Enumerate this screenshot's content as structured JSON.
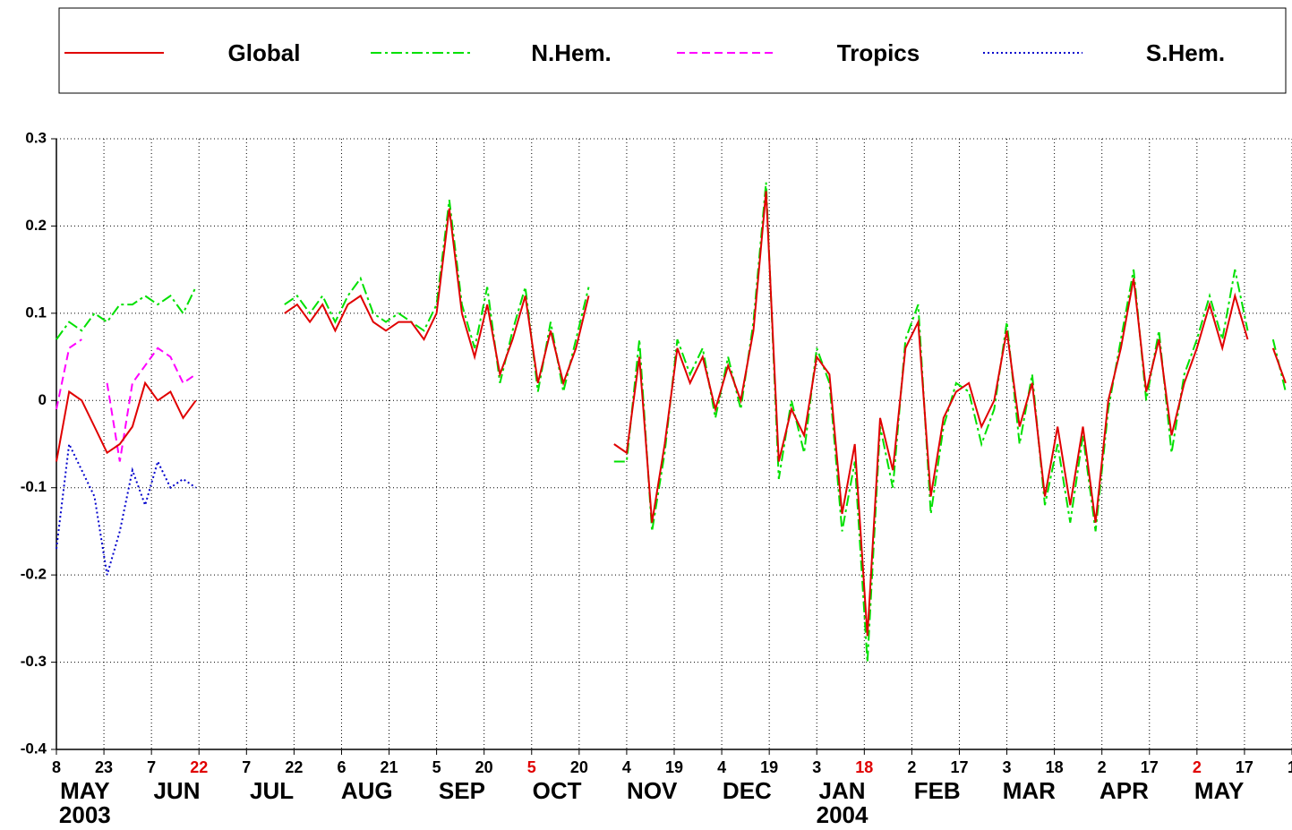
{
  "chart_data": {
    "type": "line",
    "x": [
      "2003-05-08",
      "2003-05-12",
      "2003-05-16",
      "2003-05-20",
      "2003-05-24",
      "2003-05-28",
      "2003-06-01",
      "2003-06-05",
      "2003-06-09",
      "2003-06-13",
      "2003-06-17",
      "2003-06-21",
      "2003-06-25",
      "2003-06-29",
      "2003-07-03",
      "2003-07-07",
      "2003-07-11",
      "2003-07-15",
      "2003-07-19",
      "2003-07-23",
      "2003-07-27",
      "2003-07-31",
      "2003-08-04",
      "2003-08-08",
      "2003-08-12",
      "2003-08-16",
      "2003-08-20",
      "2003-08-24",
      "2003-08-28",
      "2003-09-01",
      "2003-09-05",
      "2003-09-09",
      "2003-09-13",
      "2003-09-17",
      "2003-09-21",
      "2003-09-25",
      "2003-09-29",
      "2003-10-03",
      "2003-10-07",
      "2003-10-11",
      "2003-10-15",
      "2003-10-19",
      "2003-10-23",
      "2003-10-27",
      "2003-10-31",
      "2003-11-04",
      "2003-11-08",
      "2003-11-12",
      "2003-11-16",
      "2003-11-20",
      "2003-11-24",
      "2003-11-28",
      "2003-12-02",
      "2003-12-06",
      "2003-12-10",
      "2003-12-14",
      "2003-12-18",
      "2003-12-22",
      "2003-12-26",
      "2003-12-30",
      "2004-01-03",
      "2004-01-07",
      "2004-01-11",
      "2004-01-15",
      "2004-01-19",
      "2004-01-23",
      "2004-01-27",
      "2004-01-31",
      "2004-02-04",
      "2004-02-08",
      "2004-02-12",
      "2004-02-16",
      "2004-02-20",
      "2004-02-24",
      "2004-02-28",
      "2004-03-03",
      "2004-03-07",
      "2004-03-11",
      "2004-03-15",
      "2004-03-19",
      "2004-03-23",
      "2004-03-27",
      "2004-03-31",
      "2004-04-04",
      "2004-04-08",
      "2004-04-12",
      "2004-04-16",
      "2004-04-20",
      "2004-04-24",
      "2004-04-28",
      "2004-05-02",
      "2004-05-06",
      "2004-05-10",
      "2004-05-14",
      "2004-05-18",
      "2004-05-22",
      "2004-05-26",
      "2004-05-30"
    ],
    "series": [
      {
        "name": "Global",
        "color": "#e00000",
        "dash": "solid",
        "values": [
          -0.07,
          0.01,
          0.0,
          -0.03,
          -0.06,
          -0.05,
          -0.03,
          0.02,
          0.0,
          0.01,
          -0.02,
          0.0,
          null,
          null,
          null,
          null,
          null,
          null,
          0.1,
          0.11,
          0.09,
          0.11,
          0.08,
          0.11,
          0.12,
          0.09,
          0.08,
          0.09,
          0.09,
          0.07,
          0.1,
          0.22,
          0.1,
          0.05,
          0.11,
          0.03,
          0.07,
          0.12,
          0.02,
          0.08,
          0.02,
          0.06,
          0.12,
          null,
          -0.05,
          -0.06,
          0.05,
          -0.14,
          -0.05,
          0.06,
          0.02,
          0.05,
          -0.01,
          0.04,
          0.0,
          0.08,
          0.24,
          -0.07,
          -0.01,
          -0.04,
          0.05,
          0.03,
          -0.13,
          -0.05,
          -0.27,
          -0.02,
          -0.08,
          0.06,
          0.09,
          -0.11,
          -0.02,
          0.01,
          0.02,
          -0.03,
          0.0,
          0.08,
          -0.03,
          0.02,
          -0.11,
          -0.03,
          -0.12,
          -0.03,
          -0.14,
          0.0,
          0.06,
          0.14,
          0.01,
          0.07,
          -0.04,
          0.02,
          0.06,
          0.11,
          0.06,
          0.12,
          0.07,
          null,
          0.06,
          0.02
        ]
      },
      {
        "name": "N.Hem.",
        "color": "#00e000",
        "dash": "dashdot",
        "values": [
          0.07,
          0.09,
          0.08,
          0.1,
          0.09,
          0.11,
          0.11,
          0.12,
          0.11,
          0.12,
          0.1,
          0.13,
          null,
          null,
          null,
          null,
          null,
          null,
          0.11,
          0.12,
          0.1,
          0.12,
          0.09,
          0.12,
          0.14,
          0.1,
          0.09,
          0.1,
          0.09,
          0.08,
          0.11,
          0.23,
          0.11,
          0.06,
          0.13,
          0.02,
          0.08,
          0.13,
          0.01,
          0.09,
          0.01,
          0.07,
          0.13,
          null,
          -0.07,
          -0.07,
          0.07,
          -0.15,
          -0.06,
          0.07,
          0.03,
          0.06,
          -0.02,
          0.05,
          -0.01,
          0.09,
          0.25,
          -0.09,
          0.0,
          -0.06,
          0.06,
          0.02,
          -0.15,
          -0.07,
          -0.3,
          -0.03,
          -0.1,
          0.07,
          0.11,
          -0.13,
          -0.03,
          0.02,
          0.01,
          -0.05,
          -0.01,
          0.09,
          -0.05,
          0.03,
          -0.12,
          -0.05,
          -0.14,
          -0.04,
          -0.15,
          -0.01,
          0.07,
          0.15,
          0.0,
          0.08,
          -0.06,
          0.03,
          0.07,
          0.12,
          0.07,
          0.15,
          0.08,
          null,
          0.07,
          0.01
        ]
      },
      {
        "name": "Tropics",
        "color": "#ff00ff",
        "dash": "dashed",
        "values": [
          -0.01,
          0.06,
          0.07,
          null,
          0.02,
          -0.07,
          0.02,
          0.04,
          0.06,
          0.05,
          0.02,
          0.03,
          null,
          null,
          null,
          null,
          null,
          null,
          null,
          null,
          null,
          null,
          null,
          null,
          null,
          null,
          null,
          null,
          null,
          null,
          null,
          null,
          null,
          null,
          null,
          null,
          null,
          null,
          null,
          null,
          null,
          null,
          null,
          null,
          null,
          null,
          null,
          null,
          null,
          null,
          null,
          null,
          null,
          null,
          null,
          null,
          null,
          null,
          null,
          null,
          null,
          null,
          null,
          null,
          null,
          null,
          null,
          null,
          null,
          null,
          null,
          null,
          null,
          null,
          null,
          null,
          null,
          null,
          null,
          null,
          null,
          null,
          null,
          null,
          null,
          null,
          null,
          null,
          null,
          null,
          null,
          null,
          null,
          null,
          null,
          null,
          null,
          null
        ]
      },
      {
        "name": "S.Hem.",
        "color": "#0000cc",
        "dash": "dotted",
        "values": [
          -0.17,
          -0.05,
          -0.08,
          -0.11,
          -0.2,
          -0.15,
          -0.08,
          -0.12,
          -0.07,
          -0.1,
          -0.09,
          -0.1,
          null,
          null,
          null,
          null,
          null,
          null,
          null,
          null,
          null,
          null,
          null,
          null,
          null,
          null,
          null,
          null,
          null,
          null,
          null,
          null,
          null,
          null,
          null,
          null,
          null,
          null,
          null,
          null,
          null,
          null,
          null,
          null,
          null,
          null,
          null,
          null,
          null,
          null,
          null,
          null,
          null,
          null,
          null,
          null,
          null,
          null,
          null,
          null,
          null,
          null,
          null,
          null,
          null,
          null,
          null,
          null,
          null,
          null,
          null,
          null,
          null,
          null,
          null,
          null,
          null,
          null,
          null,
          null,
          null,
          null,
          null,
          null,
          null,
          null,
          null,
          null,
          null,
          null,
          null,
          null,
          null,
          null,
          null,
          null,
          null,
          null
        ]
      }
    ],
    "xlim": [
      "2003-05-08",
      "2004-06-01"
    ],
    "xticks": [
      {
        "value": "2003-05-08",
        "label": "8"
      },
      {
        "value": "2003-05-23",
        "label": "23"
      },
      {
        "value": "2003-06-07",
        "label": "7"
      },
      {
        "value": "2003-06-22",
        "label": "22",
        "color": "#e00000"
      },
      {
        "value": "2003-07-07",
        "label": "7"
      },
      {
        "value": "2003-07-22",
        "label": "22"
      },
      {
        "value": "2003-08-06",
        "label": "6"
      },
      {
        "value": "2003-08-21",
        "label": "21"
      },
      {
        "value": "2003-09-05",
        "label": "5"
      },
      {
        "value": "2003-09-20",
        "label": "20"
      },
      {
        "value": "2003-10-05",
        "label": "5",
        "color": "#e00000"
      },
      {
        "value": "2003-10-20",
        "label": "20"
      },
      {
        "value": "2003-11-04",
        "label": "4"
      },
      {
        "value": "2003-11-19",
        "label": "19"
      },
      {
        "value": "2003-12-04",
        "label": "4"
      },
      {
        "value": "2003-12-19",
        "label": "19"
      },
      {
        "value": "2004-01-03",
        "label": "3"
      },
      {
        "value": "2004-01-18",
        "label": "18",
        "color": "#e00000"
      },
      {
        "value": "2004-02-02",
        "label": "2"
      },
      {
        "value": "2004-02-17",
        "label": "17"
      },
      {
        "value": "2004-03-03",
        "label": "3"
      },
      {
        "value": "2004-03-18",
        "label": "18"
      },
      {
        "value": "2004-04-02",
        "label": "2"
      },
      {
        "value": "2004-04-17",
        "label": "17"
      },
      {
        "value": "2004-05-02",
        "label": "2",
        "color": "#e00000"
      },
      {
        "value": "2004-05-17",
        "label": "17"
      },
      {
        "value": "2004-06-01",
        "label": "1"
      }
    ],
    "month_labels": [
      {
        "value": "2003-05-17",
        "label": "MAY"
      },
      {
        "value": "2003-06-15",
        "label": "JUN"
      },
      {
        "value": "2003-07-15",
        "label": "JUL"
      },
      {
        "value": "2003-08-14",
        "label": "AUG"
      },
      {
        "value": "2003-09-13",
        "label": "SEP"
      },
      {
        "value": "2003-10-13",
        "label": "OCT"
      },
      {
        "value": "2003-11-12",
        "label": "NOV"
      },
      {
        "value": "2003-12-12",
        "label": "DEC"
      },
      {
        "value": "2004-01-11",
        "label": "JAN"
      },
      {
        "value": "2004-02-10",
        "label": "FEB"
      },
      {
        "value": "2004-03-10",
        "label": "MAR"
      },
      {
        "value": "2004-04-09",
        "label": "APR"
      },
      {
        "value": "2004-05-09",
        "label": "MAY"
      }
    ],
    "year_labels": [
      {
        "value": "2003-05-17",
        "label": "2003"
      },
      {
        "value": "2004-01-11",
        "label": "2004"
      }
    ],
    "ylim": [
      -0.4,
      0.3
    ],
    "yticks": [
      -0.4,
      -0.3,
      -0.2,
      -0.1,
      0,
      0.1,
      0.2,
      0.3
    ],
    "grid": true
  }
}
